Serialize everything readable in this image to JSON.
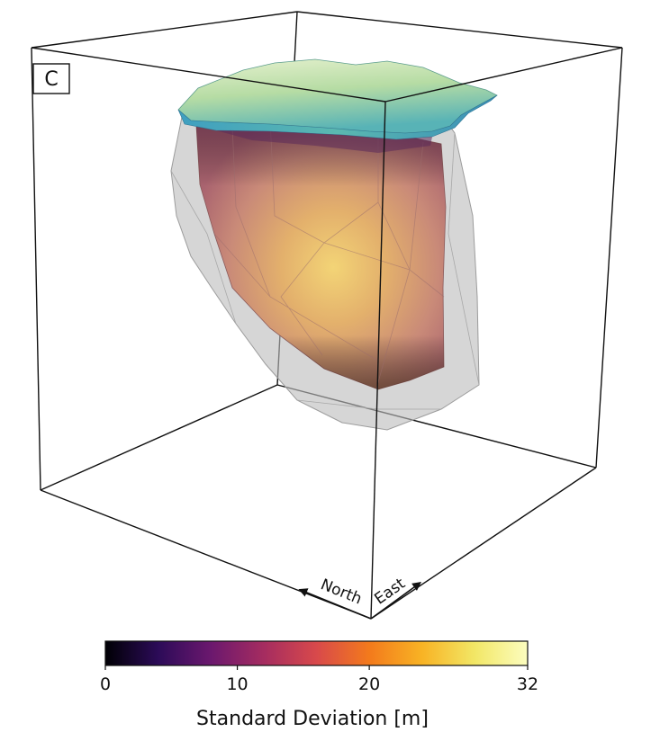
{
  "panel_label": "C",
  "directions": {
    "north": "North",
    "east": "East"
  },
  "colorbar": {
    "title": "Standard Deviation [m]",
    "min": 0,
    "max": 32,
    "ticks": [
      "0",
      "10",
      "20",
      "32"
    ],
    "tick_values": [
      0,
      10,
      20,
      32
    ],
    "colormap": "inferno",
    "stops": [
      "#000004",
      "#2c0b58",
      "#6b186e",
      "#a52c60",
      "#d8494b",
      "#f37a1c",
      "#f8b324",
      "#f2e766",
      "#fcfdbf"
    ]
  },
  "colors": {
    "surface_top": "#bfe0a8",
    "surface_teal": "#4fb1b9",
    "outer_shell": "#bdbdbd",
    "box_lines": "#111111"
  }
}
